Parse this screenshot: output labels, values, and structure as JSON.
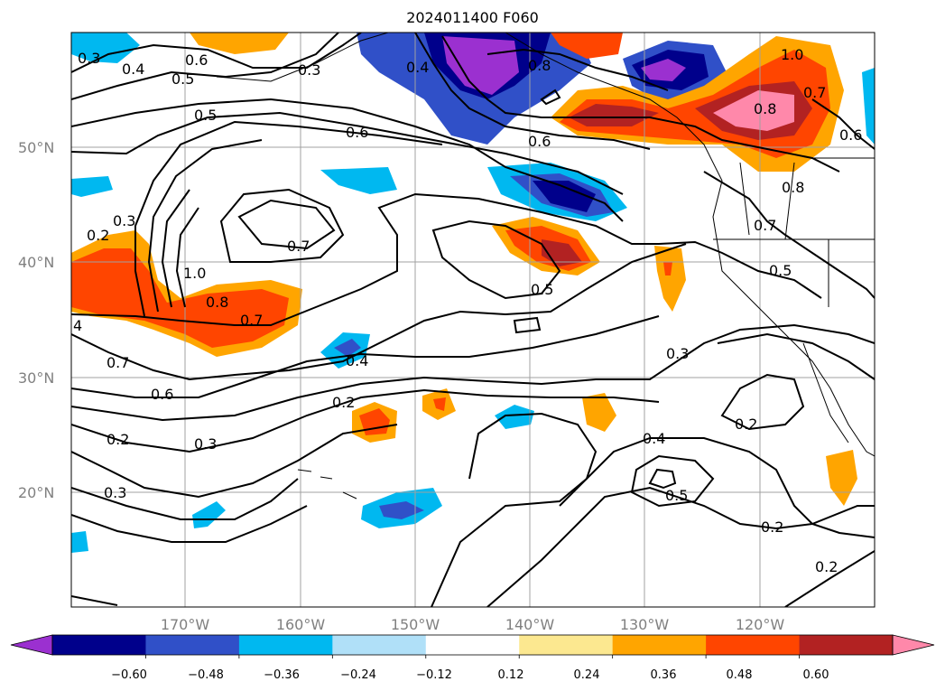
{
  "title": "2024011400 F060",
  "latitude_labels": [
    "50°N",
    "40°N",
    "30°N",
    "20°N"
  ],
  "longitude_labels": [
    "170°W",
    "160°W",
    "150°W",
    "140°W",
    "130°W",
    "120°W"
  ],
  "contour_labels": [
    "0.3",
    "0.4",
    "0.6",
    "0.5",
    "0.3",
    "0.5",
    "0.4",
    "0.8",
    "0.6",
    "1.0",
    "0.7",
    "0.8",
    "0.6",
    "0.6",
    "0.2",
    "0.3",
    "0.7",
    "1.0",
    "0.8",
    "0.7",
    "0.8",
    "0.7",
    "0.5",
    "0.5",
    "4",
    "0.7",
    "0.6",
    "0.4",
    "0.2",
    "0.3",
    "0.2",
    "0.3",
    "0.3",
    "0.4",
    "0.5",
    "0.2",
    "0.2",
    "0.2"
  ],
  "colorbar": {
    "colors": [
      "#9b30d0",
      "#00008b",
      "#3050c8",
      "#00b8f0",
      "#b0e0f8",
      "#ffffff",
      "#fce890",
      "#ffa500",
      "#ff4500",
      "#b22222",
      "#ff88aa"
    ],
    "tick_labels": [
      "−0.60",
      "−0.48",
      "−0.36",
      "−0.24",
      "−0.12",
      "0.12",
      "0.24",
      "0.36",
      "0.48",
      "0.60"
    ]
  },
  "colors": {
    "contour": "#000000",
    "grid": "#a0a0a0",
    "coast": "#000000"
  }
}
